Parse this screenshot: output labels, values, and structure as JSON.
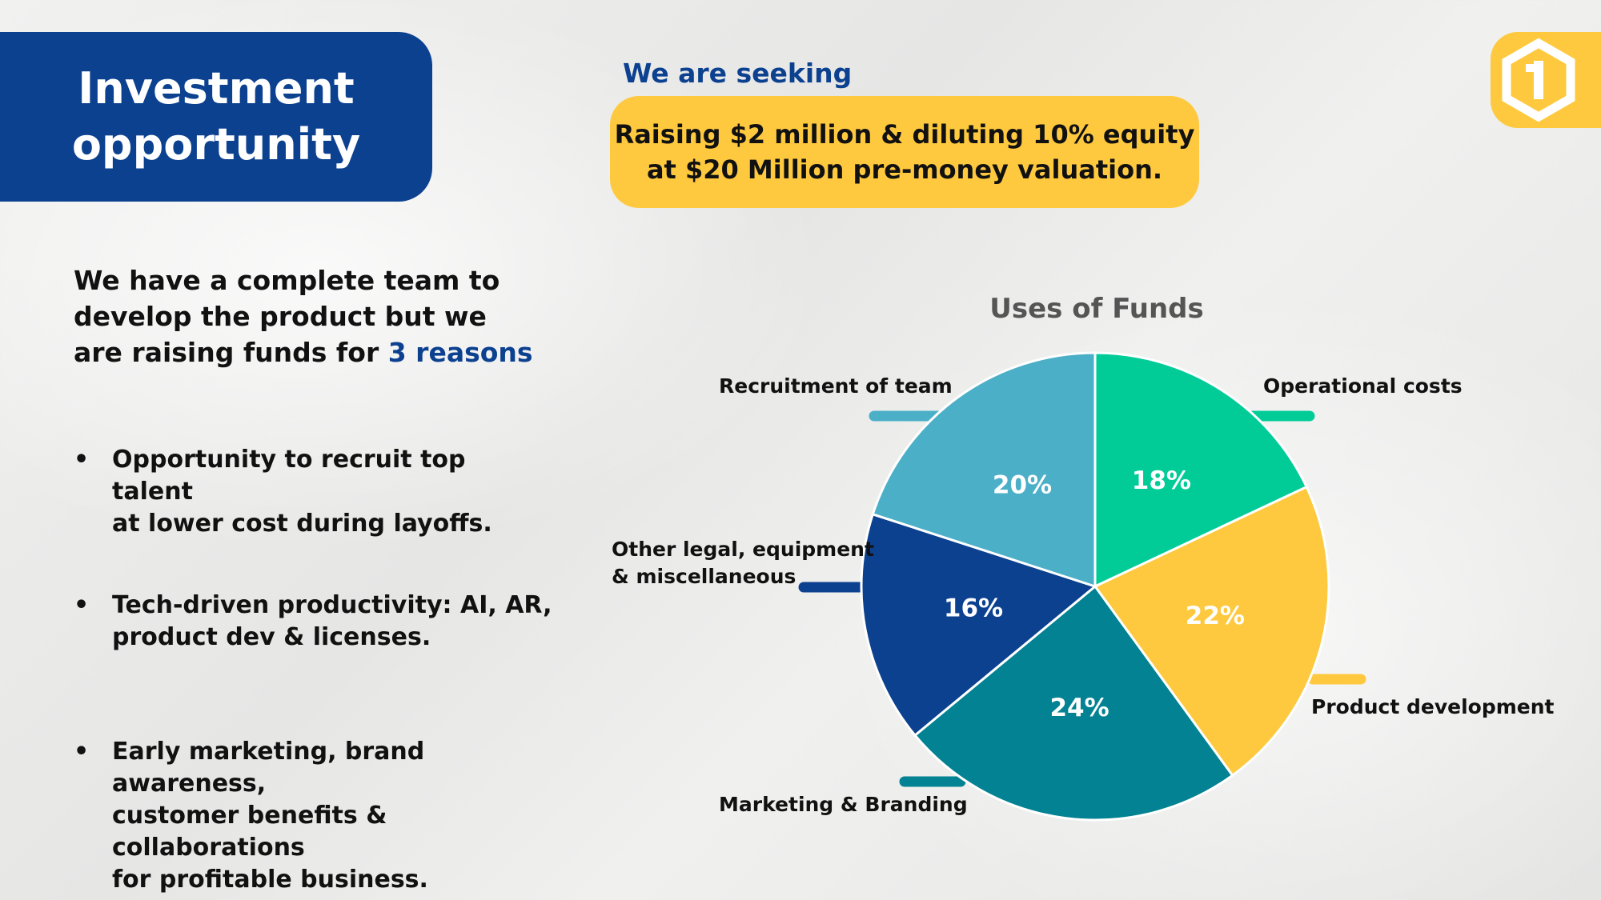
{
  "header": {
    "title": "Investment\nopportunity",
    "seeking_label": "We are seeking",
    "raise_text": "Raising $2 million & diluting  10% equity\nat $20  Million pre-money valuation."
  },
  "logo": {
    "icon": "brand-logo-icon",
    "color": "#fec93e"
  },
  "intro": {
    "text": "We have a complete team to develop the product but we are raising funds for",
    "highlight": "3 reasons"
  },
  "reasons": [
    "Opportunity to recruit top talent\nat lower cost during layoffs.",
    "Tech-driven productivity: AI, AR,\nproduct dev & licenses.",
    "Early marketing, brand awareness,\ncustomer benefits & collaborations\nfor profitable business."
  ],
  "bullet_symbol": "•",
  "chart_data": {
    "type": "pie",
    "title": "Uses of Funds",
    "categories": [
      "Operational costs",
      "Product development",
      "Marketing & Branding",
      "Other legal, equipment\n& miscellaneous",
      "Recruitment of team"
    ],
    "values": [
      18,
      22,
      24,
      16,
      20
    ],
    "value_labels": [
      "18%",
      "22%",
      "24%",
      "16%",
      "20%"
    ],
    "colors": [
      "#01cc98",
      "#fec93e",
      "#028292",
      "#0c4190",
      "#4bafc8"
    ],
    "start": "12 o'clock",
    "direction": "clockwise",
    "legend": "callout labels around pie"
  }
}
